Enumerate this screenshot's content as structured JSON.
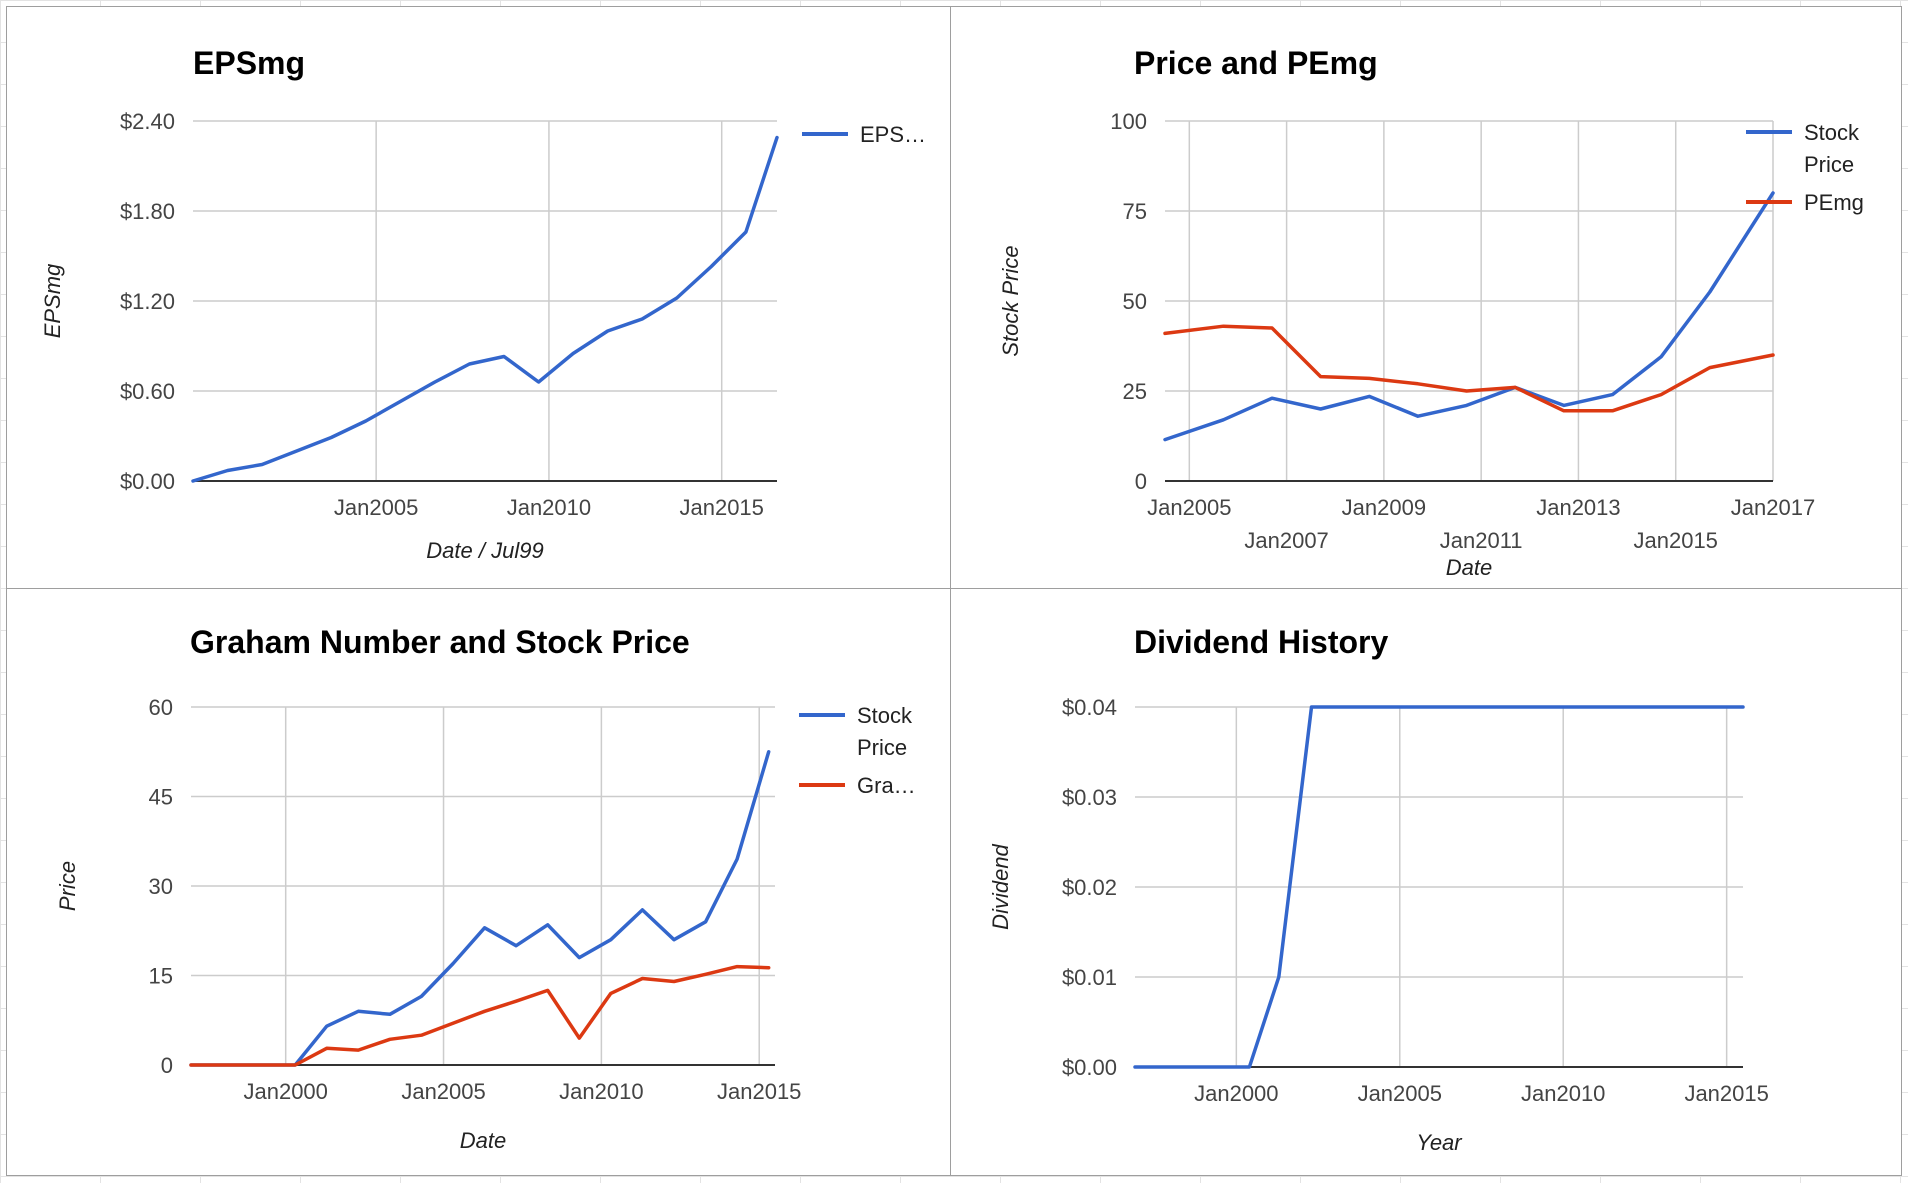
{
  "colors": {
    "blue": "#3366cc",
    "red": "#dc3912"
  },
  "chart_data": [
    {
      "type": "line",
      "title": "EPSmg",
      "xlabel": "Date / Jul99",
      "ylabel": "EPSmg",
      "xlim": [
        1999.7,
        2016.6
      ],
      "ylim": [
        0,
        2.4
      ],
      "x_ticks": [
        {
          "value": 2005,
          "label": "Jan2005",
          "row": 0
        },
        {
          "value": 2010,
          "label": "Jan2010",
          "row": 0
        },
        {
          "value": 2015,
          "label": "Jan2015",
          "row": 0
        }
      ],
      "y_ticks": [
        {
          "value": 0,
          "label": "$0.00"
        },
        {
          "value": 0.6,
          "label": "$0.60"
        },
        {
          "value": 1.2,
          "label": "$1.20"
        },
        {
          "value": 1.8,
          "label": "$1.80"
        },
        {
          "value": 2.4,
          "label": "$2.40"
        }
      ],
      "legend_position": "right",
      "series": [
        {
          "name": "EPS…",
          "color": "#3366cc",
          "x": [
            1999.7,
            2000.7,
            2001.7,
            2002.7,
            2003.7,
            2004.7,
            2005.7,
            2006.7,
            2007.7,
            2008.7,
            2009.7,
            2010.7,
            2011.7,
            2012.7,
            2013.7,
            2014.7,
            2015.7,
            2016.6
          ],
          "y": [
            0.0,
            0.07,
            0.11,
            0.2,
            0.29,
            0.4,
            0.53,
            0.66,
            0.78,
            0.83,
            0.66,
            0.85,
            1.0,
            1.08,
            1.22,
            1.43,
            1.66,
            2.29
          ]
        }
      ]
    },
    {
      "type": "line",
      "title": "Price and PEmg",
      "xlabel": "Date",
      "ylabel": "Stock Price",
      "xlim": [
        2004.5,
        2017.0
      ],
      "ylim": [
        0,
        100
      ],
      "x_ticks": [
        {
          "value": 2005,
          "label": "Jan2005",
          "row": 0
        },
        {
          "value": 2007,
          "label": "Jan2007",
          "row": 1
        },
        {
          "value": 2009,
          "label": "Jan2009",
          "row": 0
        },
        {
          "value": 2011,
          "label": "Jan2011",
          "row": 1
        },
        {
          "value": 2013,
          "label": "Jan2013",
          "row": 0
        },
        {
          "value": 2015,
          "label": "Jan2015",
          "row": 1
        },
        {
          "value": 2017,
          "label": "Jan2017",
          "row": 0
        }
      ],
      "y_ticks": [
        {
          "value": 0,
          "label": "0"
        },
        {
          "value": 25,
          "label": "25"
        },
        {
          "value": 50,
          "label": "50"
        },
        {
          "value": 75,
          "label": "75"
        },
        {
          "value": 100,
          "label": "100"
        }
      ],
      "legend_position": "right",
      "series": [
        {
          "name": "Stock Price",
          "color": "#3366cc",
          "x": [
            2004.5,
            2005.7,
            2006.7,
            2007.7,
            2008.7,
            2009.7,
            2010.7,
            2011.7,
            2012.7,
            2013.7,
            2014.7,
            2015.7,
            2017.0
          ],
          "y": [
            11.5,
            17.0,
            23.0,
            20.0,
            23.5,
            18.0,
            21.0,
            26.0,
            21.0,
            24.0,
            34.5,
            52.5,
            80.0
          ]
        },
        {
          "name": "PEmg",
          "color": "#dc3912",
          "x": [
            2004.5,
            2005.7,
            2006.7,
            2007.7,
            2008.7,
            2009.7,
            2010.7,
            2011.7,
            2012.7,
            2013.7,
            2014.7,
            2015.7,
            2017.0
          ],
          "y": [
            41.0,
            43.0,
            42.5,
            29.0,
            28.5,
            27.0,
            25.0,
            26.0,
            19.5,
            19.5,
            24.0,
            31.5,
            35.0
          ]
        }
      ]
    },
    {
      "type": "line",
      "title": "Graham Number and Stock Price",
      "xlabel": "Date",
      "ylabel": "Price",
      "xlim": [
        1997.0,
        2015.5
      ],
      "ylim": [
        0,
        60
      ],
      "x_ticks": [
        {
          "value": 2000,
          "label": "Jan2000",
          "row": 0
        },
        {
          "value": 2005,
          "label": "Jan2005",
          "row": 0
        },
        {
          "value": 2010,
          "label": "Jan2010",
          "row": 0
        },
        {
          "value": 2015,
          "label": "Jan2015",
          "row": 0
        }
      ],
      "y_ticks": [
        {
          "value": 0,
          "label": "0"
        },
        {
          "value": 15,
          "label": "15"
        },
        {
          "value": 30,
          "label": "30"
        },
        {
          "value": 45,
          "label": "45"
        },
        {
          "value": 60,
          "label": "60"
        }
      ],
      "legend_position": "right",
      "series": [
        {
          "name": "Stock Price",
          "color": "#3366cc",
          "x": [
            1997.0,
            2000.3,
            2001.3,
            2002.3,
            2003.3,
            2004.3,
            2005.3,
            2006.3,
            2007.3,
            2008.3,
            2009.3,
            2010.3,
            2011.3,
            2012.3,
            2013.3,
            2014.3,
            2015.3
          ],
          "y": [
            0,
            0,
            6.5,
            9.0,
            8.5,
            11.5,
            17.0,
            23.0,
            20.0,
            23.5,
            18.0,
            21.0,
            26.0,
            21.0,
            24.0,
            34.5,
            52.5
          ]
        },
        {
          "name": "Gra…",
          "color": "#dc3912",
          "x": [
            1997.0,
            2000.3,
            2001.3,
            2002.3,
            2003.3,
            2004.3,
            2005.3,
            2006.3,
            2007.3,
            2008.3,
            2009.3,
            2010.3,
            2011.3,
            2012.3,
            2013.3,
            2014.3,
            2015.3
          ],
          "y": [
            0,
            0,
            2.8,
            2.5,
            4.3,
            5.0,
            7.0,
            9.0,
            10.7,
            12.5,
            4.5,
            12.0,
            14.5,
            14.0,
            15.2,
            16.5,
            16.3
          ]
        }
      ]
    },
    {
      "type": "line",
      "title": "Dividend History",
      "xlabel": "Year",
      "ylabel": "Dividend",
      "xlim": [
        1996.9,
        2015.5
      ],
      "ylim": [
        0,
        0.04
      ],
      "x_ticks": [
        {
          "value": 2000,
          "label": "Jan2000",
          "row": 0
        },
        {
          "value": 2005,
          "label": "Jan2005",
          "row": 0
        },
        {
          "value": 2010,
          "label": "Jan2010",
          "row": 0
        },
        {
          "value": 2015,
          "label": "Jan2015",
          "row": 0
        }
      ],
      "y_ticks": [
        {
          "value": 0,
          "label": "$0.00"
        },
        {
          "value": 0.01,
          "label": "$0.01"
        },
        {
          "value": 0.02,
          "label": "$0.02"
        },
        {
          "value": 0.03,
          "label": "$0.03"
        },
        {
          "value": 0.04,
          "label": "$0.04"
        }
      ],
      "legend_position": "none",
      "series": [
        {
          "color": "#3366cc",
          "x": [
            1996.9,
            2000.4,
            2001.3,
            2002.3,
            2015.5
          ],
          "y": [
            0,
            0,
            0.01,
            0.04,
            0.04
          ]
        }
      ]
    }
  ]
}
